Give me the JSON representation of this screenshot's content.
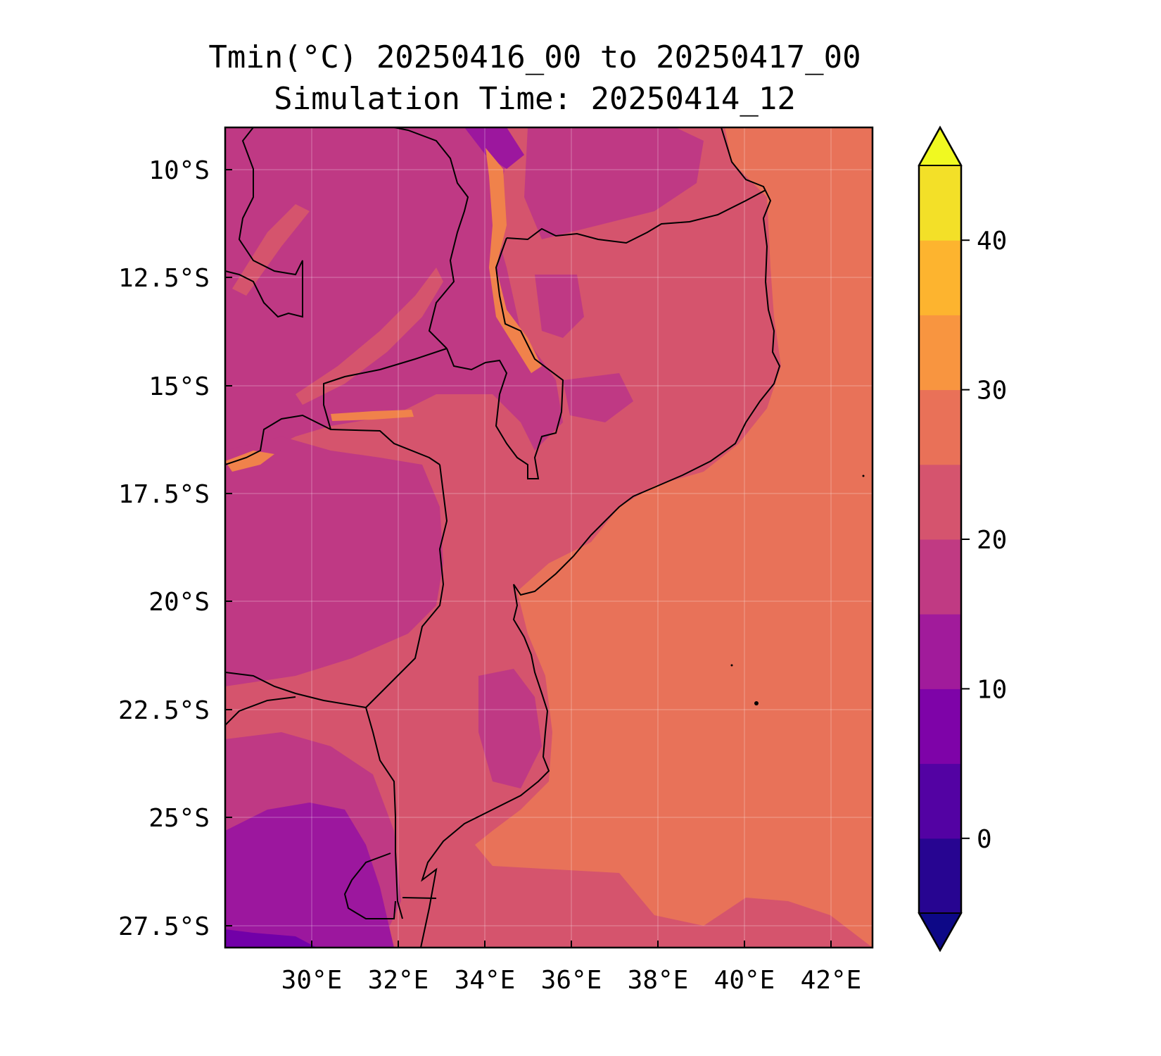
{
  "title": {
    "line1": "Tmin(°C) 20250416_00 to 20250417_00",
    "line2": "Simulation Time: 20250414_12"
  },
  "map": {
    "lat_ticks": [
      "10°S",
      "12.5°S",
      "15°S",
      "17.5°S",
      "20°S",
      "22.5°S",
      "25°S",
      "27.5°S"
    ],
    "lon_ticks": [
      "30°E",
      "32°E",
      "34°E",
      "36°E",
      "38°E",
      "40°E",
      "42°E"
    ],
    "lon_range": [
      28,
      43
    ],
    "lat_range": [
      -9,
      -28
    ],
    "colors": {
      "ocean": "#e87259",
      "lowland": "#d5546d",
      "highland": "#bf3984",
      "cool_highland": "#9c179e",
      "lake_shore": "#f0824b",
      "cold": "#7200a8",
      "border": "#000000"
    }
  },
  "colorbar": {
    "ticks": [
      "0",
      "10",
      "20",
      "30",
      "40"
    ],
    "tick_values": [
      0,
      10,
      20,
      30,
      40
    ],
    "range": [
      -5,
      45
    ],
    "extend": "both",
    "levels": [
      -5,
      0,
      5,
      10,
      15,
      20,
      25,
      30,
      35,
      40,
      45
    ],
    "colors": [
      "#270591",
      "#5302a3",
      "#7e03a8",
      "#a11b9b",
      "#c03a83",
      "#d5546e",
      "#e97158",
      "#f89540",
      "#fdb42f",
      "#f3e028"
    ],
    "under_color": "#0d0887",
    "over_color": "#f0f921"
  }
}
